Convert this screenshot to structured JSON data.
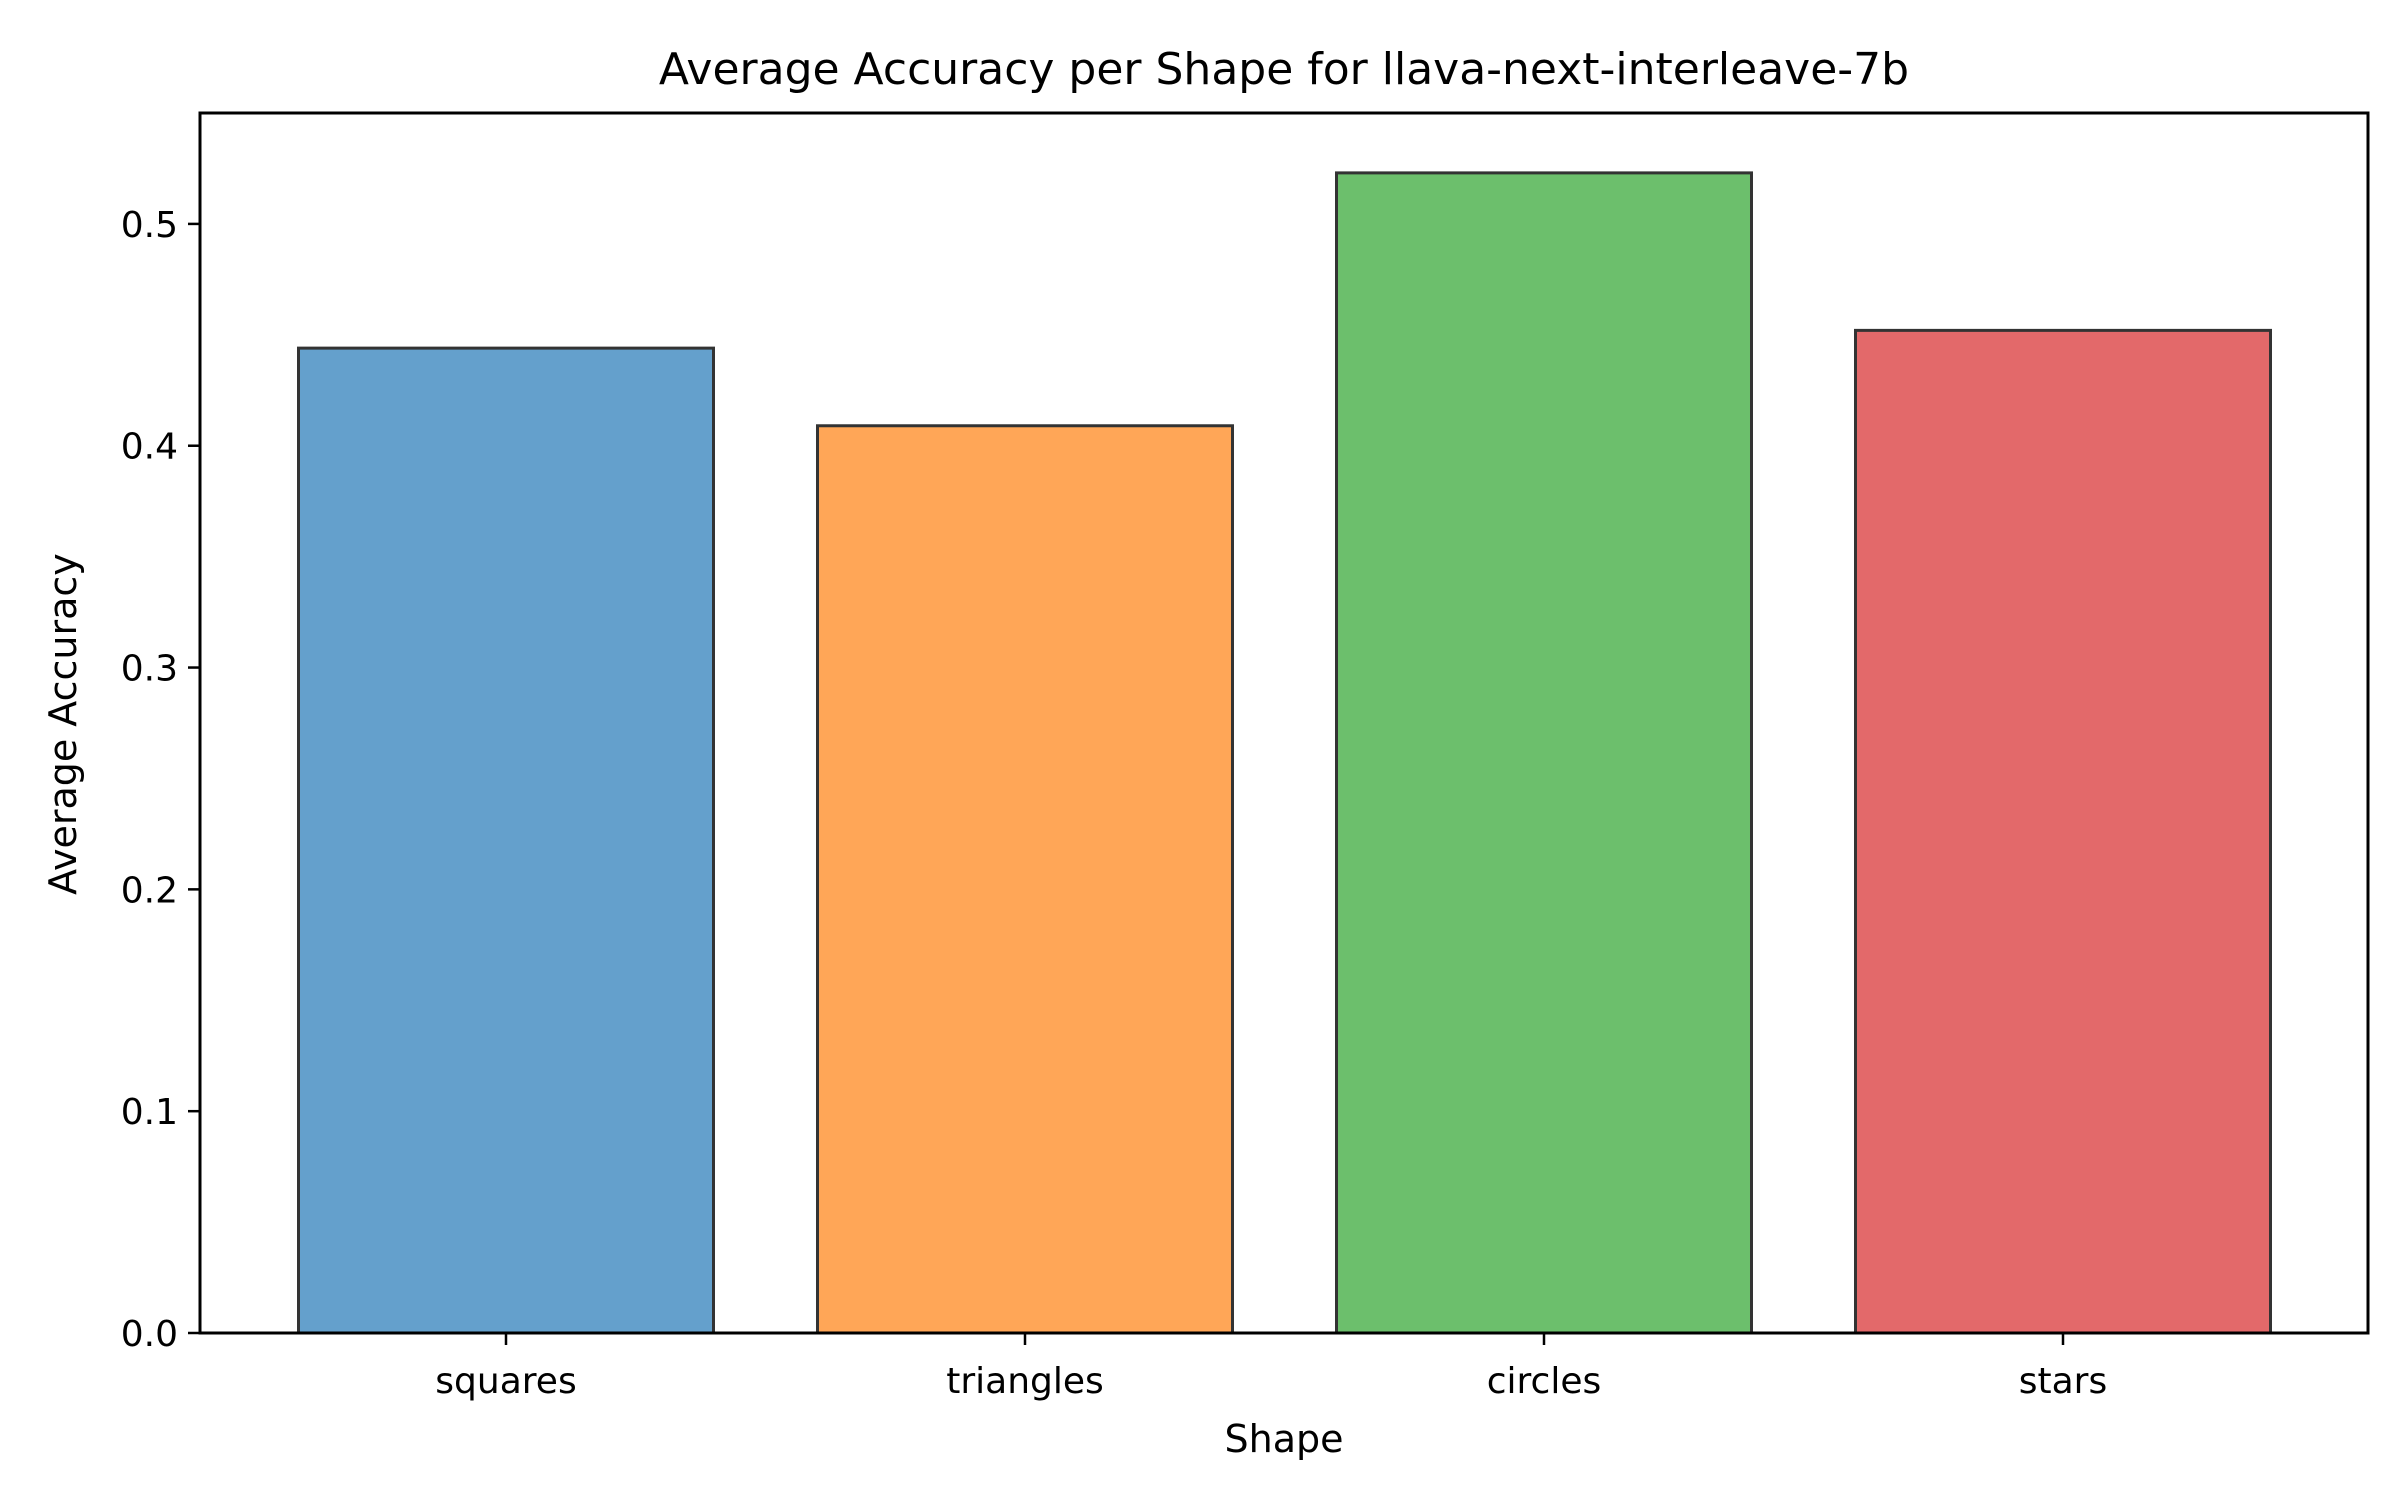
{
  "chart_data": {
    "type": "bar",
    "title": "Average Accuracy per Shape for llava-next-interleave-7b",
    "xlabel": "Shape",
    "ylabel": "Average Accuracy",
    "categories": [
      "squares",
      "triangles",
      "circles",
      "stars"
    ],
    "values": [
      0.444,
      0.409,
      0.523,
      0.452
    ],
    "colors": [
      "#64a0cc",
      "#ffa657",
      "#6cbf6c",
      "#e3696a"
    ],
    "edge_color": "#333333",
    "ylim": [
      0,
      0.55
    ],
    "yticks": [
      0.0,
      0.1,
      0.2,
      0.3,
      0.4,
      0.5
    ],
    "ytick_labels": [
      "0.0",
      "0.1",
      "0.2",
      "0.3",
      "0.4",
      "0.5"
    ],
    "grid": false,
    "legend": "none"
  }
}
